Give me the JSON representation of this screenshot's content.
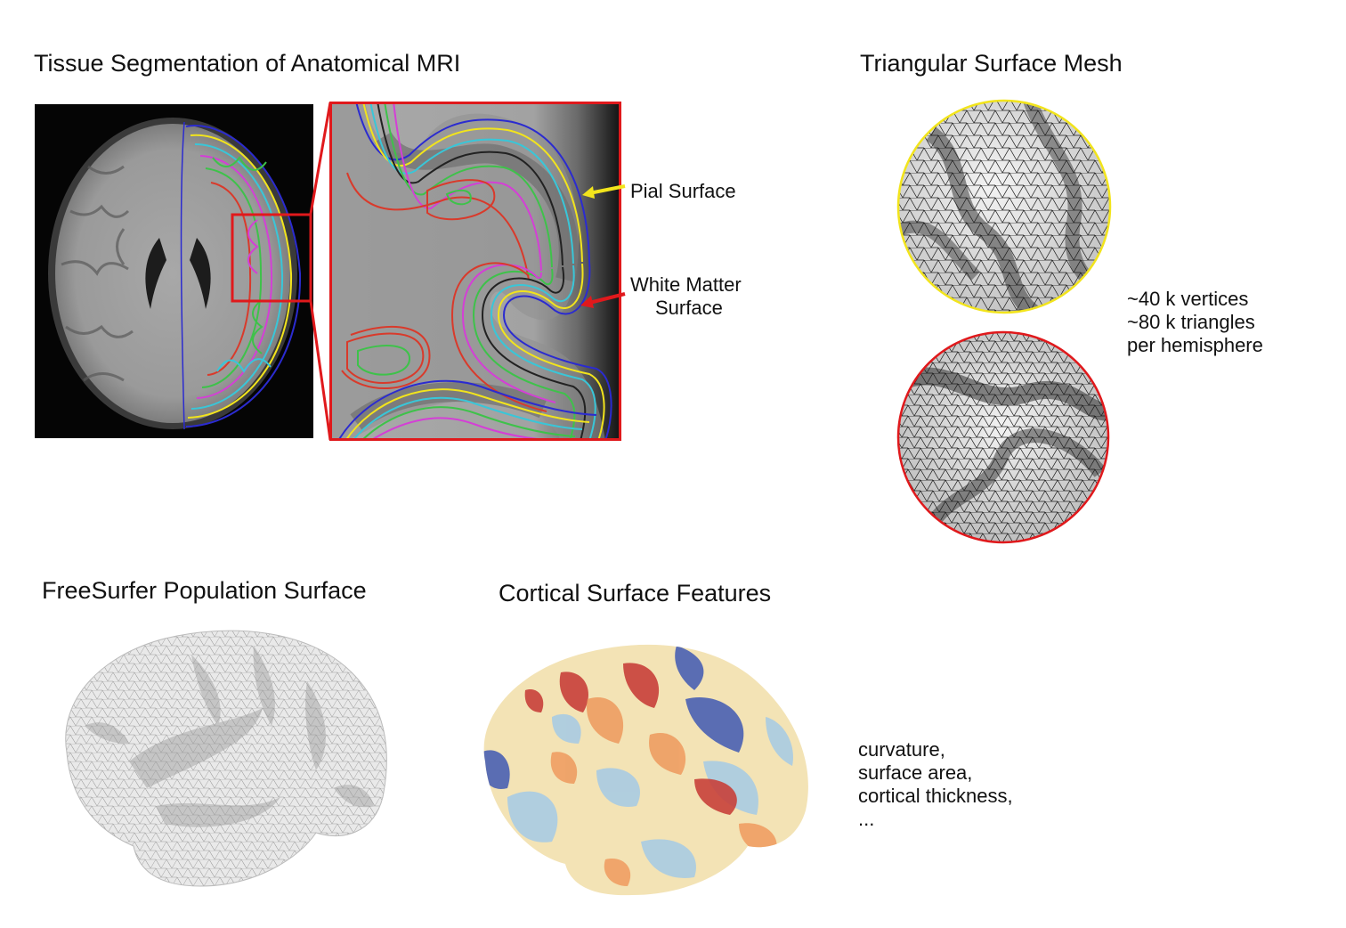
{
  "panels": {
    "segmentation": {
      "title": "Tissue Segmentation of Anatomical MRI",
      "pial_label": "Pial Surface",
      "wm_label_line1": "White Matter",
      "wm_label_line2": "Surface"
    },
    "mesh": {
      "title": "Triangular Surface Mesh",
      "stats": [
        "~40 k vertices",
        "~80 k triangles",
        "per hemisphere"
      ]
    },
    "population": {
      "title": "FreeSurfer Population Surface"
    },
    "features": {
      "title": "Cortical Surface Features",
      "list": [
        "curvature,",
        "surface area,",
        "cortical thickness,",
        "..."
      ]
    }
  },
  "colors": {
    "zoom_box": "#e0191c",
    "pial": "#f2e41c",
    "white_matter": "#e0191c",
    "contour_green": "#3ec24a",
    "contour_cyan": "#39c6d8",
    "contour_magenta": "#d43fd6",
    "contour_blue": "#2b2bd0",
    "contour_red": "#d93a2b"
  }
}
